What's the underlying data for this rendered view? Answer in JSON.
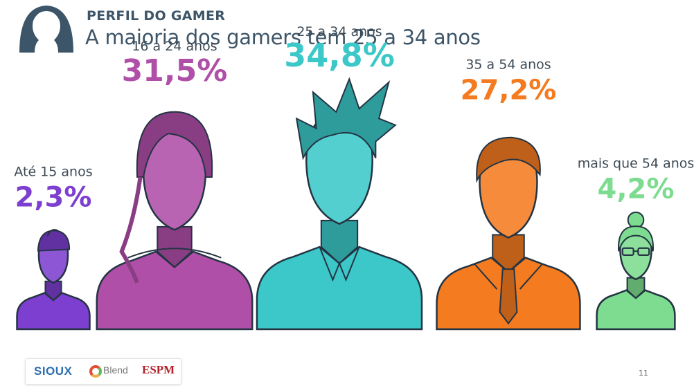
{
  "header": {
    "kicker": "PERFIL DO GAMER",
    "title": "A maioria dos gamers tem 25 a 34 anos",
    "icon": "person-silhouette-icon"
  },
  "chart_data": {
    "type": "pictogram",
    "categories": [
      "Até 15 anos",
      "16 a 24 anos",
      "25 a 34 anos",
      "35 a 54 anos",
      "mais que 54 anos"
    ],
    "values": [
      2.3,
      31.5,
      34.8,
      27.2,
      4.2
    ],
    "value_labels": [
      "2,3%",
      "31,5%",
      "34,8%",
      "27,2%",
      "4,2%"
    ],
    "colors": [
      "#7d3fcf",
      "#b04fa8",
      "#3cc8c8",
      "#f47b20",
      "#7ddc8f"
    ],
    "figure_icons": [
      "kid-cap-icon",
      "young-woman-icon",
      "spiky-hair-man-icon",
      "businessman-icon",
      "elderly-woman-glasses-icon"
    ]
  },
  "footer": {
    "logos": [
      "SIOUX",
      "Blend",
      "ESPM"
    ],
    "page_number": "11"
  }
}
